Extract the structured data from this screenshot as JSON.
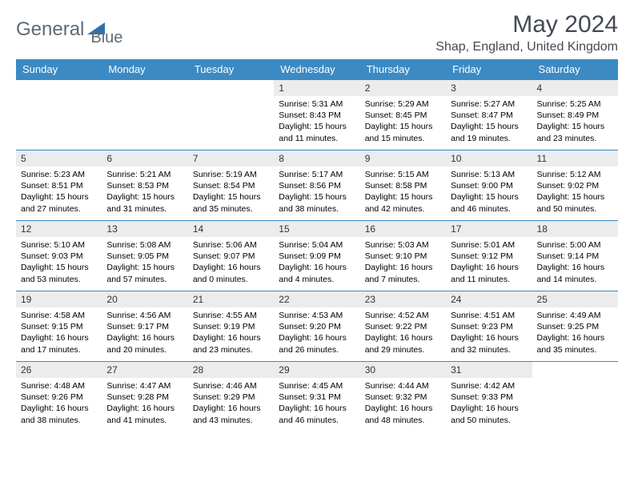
{
  "logo": {
    "text1": "General",
    "text2": "Blue",
    "triangle_fill": "#2f6fb0"
  },
  "title": "May 2024",
  "location": "Shap, England, United Kingdom",
  "header_bg": "#3b8ac4",
  "header_fg": "#ffffff",
  "daynum_bg": "#ececec",
  "border_color": "#3b8ac4",
  "dow": [
    "Sunday",
    "Monday",
    "Tuesday",
    "Wednesday",
    "Thursday",
    "Friday",
    "Saturday"
  ],
  "weeks": [
    [
      {
        "n": "",
        "sr": "",
        "ss": "",
        "dl": ""
      },
      {
        "n": "",
        "sr": "",
        "ss": "",
        "dl": ""
      },
      {
        "n": "",
        "sr": "",
        "ss": "",
        "dl": ""
      },
      {
        "n": "1",
        "sr": "5:31 AM",
        "ss": "8:43 PM",
        "dl": "15 hours and 11 minutes."
      },
      {
        "n": "2",
        "sr": "5:29 AM",
        "ss": "8:45 PM",
        "dl": "15 hours and 15 minutes."
      },
      {
        "n": "3",
        "sr": "5:27 AM",
        "ss": "8:47 PM",
        "dl": "15 hours and 19 minutes."
      },
      {
        "n": "4",
        "sr": "5:25 AM",
        "ss": "8:49 PM",
        "dl": "15 hours and 23 minutes."
      }
    ],
    [
      {
        "n": "5",
        "sr": "5:23 AM",
        "ss": "8:51 PM",
        "dl": "15 hours and 27 minutes."
      },
      {
        "n": "6",
        "sr": "5:21 AM",
        "ss": "8:53 PM",
        "dl": "15 hours and 31 minutes."
      },
      {
        "n": "7",
        "sr": "5:19 AM",
        "ss": "8:54 PM",
        "dl": "15 hours and 35 minutes."
      },
      {
        "n": "8",
        "sr": "5:17 AM",
        "ss": "8:56 PM",
        "dl": "15 hours and 38 minutes."
      },
      {
        "n": "9",
        "sr": "5:15 AM",
        "ss": "8:58 PM",
        "dl": "15 hours and 42 minutes."
      },
      {
        "n": "10",
        "sr": "5:13 AM",
        "ss": "9:00 PM",
        "dl": "15 hours and 46 minutes."
      },
      {
        "n": "11",
        "sr": "5:12 AM",
        "ss": "9:02 PM",
        "dl": "15 hours and 50 minutes."
      }
    ],
    [
      {
        "n": "12",
        "sr": "5:10 AM",
        "ss": "9:03 PM",
        "dl": "15 hours and 53 minutes."
      },
      {
        "n": "13",
        "sr": "5:08 AM",
        "ss": "9:05 PM",
        "dl": "15 hours and 57 minutes."
      },
      {
        "n": "14",
        "sr": "5:06 AM",
        "ss": "9:07 PM",
        "dl": "16 hours and 0 minutes."
      },
      {
        "n": "15",
        "sr": "5:04 AM",
        "ss": "9:09 PM",
        "dl": "16 hours and 4 minutes."
      },
      {
        "n": "16",
        "sr": "5:03 AM",
        "ss": "9:10 PM",
        "dl": "16 hours and 7 minutes."
      },
      {
        "n": "17",
        "sr": "5:01 AM",
        "ss": "9:12 PM",
        "dl": "16 hours and 11 minutes."
      },
      {
        "n": "18",
        "sr": "5:00 AM",
        "ss": "9:14 PM",
        "dl": "16 hours and 14 minutes."
      }
    ],
    [
      {
        "n": "19",
        "sr": "4:58 AM",
        "ss": "9:15 PM",
        "dl": "16 hours and 17 minutes."
      },
      {
        "n": "20",
        "sr": "4:56 AM",
        "ss": "9:17 PM",
        "dl": "16 hours and 20 minutes."
      },
      {
        "n": "21",
        "sr": "4:55 AM",
        "ss": "9:19 PM",
        "dl": "16 hours and 23 minutes."
      },
      {
        "n": "22",
        "sr": "4:53 AM",
        "ss": "9:20 PM",
        "dl": "16 hours and 26 minutes."
      },
      {
        "n": "23",
        "sr": "4:52 AM",
        "ss": "9:22 PM",
        "dl": "16 hours and 29 minutes."
      },
      {
        "n": "24",
        "sr": "4:51 AM",
        "ss": "9:23 PM",
        "dl": "16 hours and 32 minutes."
      },
      {
        "n": "25",
        "sr": "4:49 AM",
        "ss": "9:25 PM",
        "dl": "16 hours and 35 minutes."
      }
    ],
    [
      {
        "n": "26",
        "sr": "4:48 AM",
        "ss": "9:26 PM",
        "dl": "16 hours and 38 minutes."
      },
      {
        "n": "27",
        "sr": "4:47 AM",
        "ss": "9:28 PM",
        "dl": "16 hours and 41 minutes."
      },
      {
        "n": "28",
        "sr": "4:46 AM",
        "ss": "9:29 PM",
        "dl": "16 hours and 43 minutes."
      },
      {
        "n": "29",
        "sr": "4:45 AM",
        "ss": "9:31 PM",
        "dl": "16 hours and 46 minutes."
      },
      {
        "n": "30",
        "sr": "4:44 AM",
        "ss": "9:32 PM",
        "dl": "16 hours and 48 minutes."
      },
      {
        "n": "31",
        "sr": "4:42 AM",
        "ss": "9:33 PM",
        "dl": "16 hours and 50 minutes."
      },
      {
        "n": "",
        "sr": "",
        "ss": "",
        "dl": ""
      }
    ]
  ],
  "labels": {
    "sunrise": "Sunrise:",
    "sunset": "Sunset:",
    "daylight": "Daylight:"
  }
}
